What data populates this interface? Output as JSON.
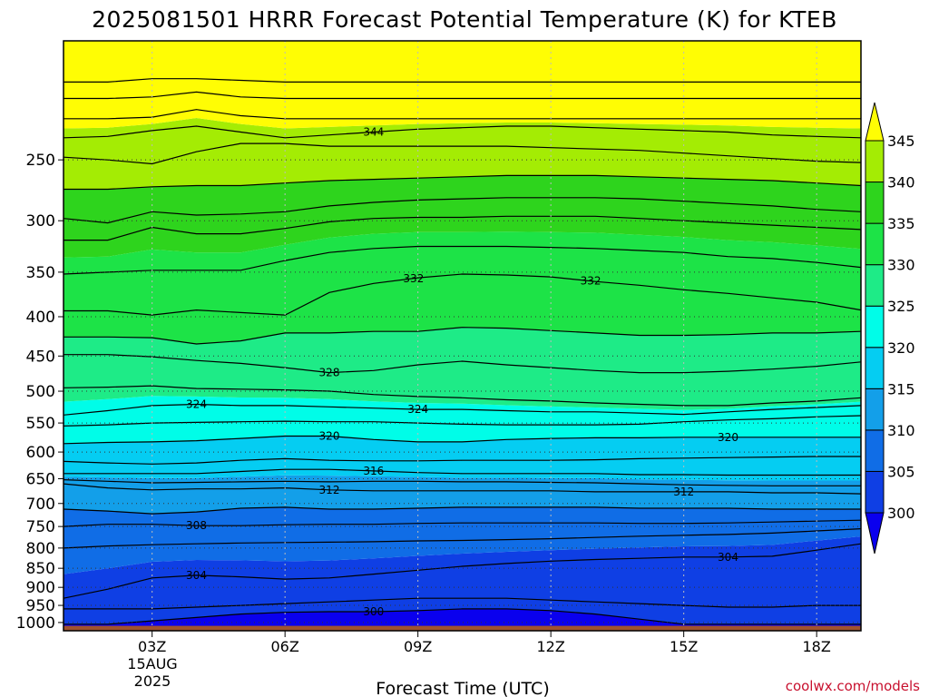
{
  "chart_data": {
    "type": "heatmap",
    "title": "2025081501 HRRR Forecast Potential Temperature (K) for KTEB",
    "xlabel": "Forecast Time (UTC)",
    "ylabel": "",
    "x_ticks": [
      {
        "label": "03Z",
        "hour": 3
      },
      {
        "label": "06Z",
        "hour": 6
      },
      {
        "label": "09Z",
        "hour": 9
      },
      {
        "label": "12Z",
        "hour": 12
      },
      {
        "label": "15Z",
        "hour": 15
      },
      {
        "label": "18Z",
        "hour": 18
      }
    ],
    "date_line1": "15AUG",
    "date_line2": "2025",
    "xlim": [
      1,
      19
    ],
    "y_scale": "log-pressure",
    "ylim": [
      1025,
      175
    ],
    "y_ticks": [
      250,
      300,
      350,
      400,
      450,
      500,
      550,
      600,
      650,
      700,
      750,
      800,
      850,
      900,
      950,
      1000
    ],
    "colorbar": {
      "levels": [
        300,
        305,
        310,
        315,
        320,
        325,
        330,
        335,
        340,
        345
      ],
      "colors": [
        "#0a00ee",
        "#0f3fe4",
        "#106de6",
        "#139fe9",
        "#05cdf2",
        "#00fde8",
        "#1eeb87",
        "#1de347",
        "#2ed41d",
        "#a4ec04",
        "#fffd04"
      ],
      "extend": "both"
    },
    "isentropes": [
      {
        "value": 300,
        "pressures": [
          1005,
          1005,
          995,
          985,
          975,
          970,
          968,
          968,
          965,
          960,
          960,
          965,
          975,
          990,
          1005,
          1005,
          1005,
          1005,
          1005
        ]
      },
      {
        "value": 302,
        "pressures": [
          960,
          960,
          960,
          955,
          950,
          945,
          940,
          935,
          930,
          930,
          930,
          935,
          940,
          945,
          950,
          955,
          955,
          950,
          950
        ]
      },
      {
        "value": 304,
        "pressures": [
          930,
          905,
          875,
          868,
          872,
          878,
          875,
          865,
          855,
          845,
          838,
          832,
          828,
          825,
          822,
          822,
          820,
          805,
          790
        ]
      },
      {
        "value": 306,
        "pressures": [
          800,
          795,
          792,
          790,
          788,
          787,
          786,
          785,
          783,
          782,
          780,
          778,
          775,
          772,
          770,
          768,
          765,
          760,
          755
        ]
      },
      {
        "value": 308,
        "pressures": [
          750,
          745,
          745,
          748,
          748,
          746,
          745,
          745,
          743,
          742,
          742,
          742,
          742,
          743,
          743,
          742,
          740,
          738,
          736
        ]
      },
      {
        "value": 310,
        "pressures": [
          712,
          716,
          722,
          718,
          710,
          708,
          712,
          712,
          710,
          708,
          708,
          708,
          708,
          710,
          710,
          710,
          712,
          712,
          712
        ]
      },
      {
        "value": 312,
        "pressures": [
          660,
          668,
          672,
          670,
          670,
          668,
          672,
          674,
          674,
          674,
          674,
          674,
          676,
          676,
          676,
          676,
          678,
          678,
          680
        ]
      },
      {
        "value": 314,
        "pressures": [
          652,
          655,
          658,
          657,
          656,
          655,
          656,
          655,
          655,
          656,
          656,
          657,
          658,
          660,
          662,
          663,
          664,
          664,
          664
        ]
      },
      {
        "value": 316,
        "pressures": [
          640,
          640,
          640,
          640,
          636,
          632,
          632,
          635,
          638,
          640,
          640,
          640,
          640,
          642,
          642,
          643,
          643,
          643,
          643
        ]
      },
      {
        "value": 318,
        "pressures": [
          617,
          620,
          622,
          620,
          615,
          612,
          615,
          616,
          616,
          615,
          615,
          615,
          614,
          612,
          611,
          610,
          609,
          608,
          608
        ]
      },
      {
        "value": 320,
        "pressures": [
          585,
          583,
          582,
          580,
          576,
          572,
          572,
          578,
          582,
          582,
          578,
          576,
          575,
          575,
          574,
          574,
          574,
          574,
          574
        ]
      },
      {
        "value": 322,
        "pressures": [
          555,
          553,
          550,
          549,
          548,
          547,
          548,
          548,
          550,
          552,
          553,
          553,
          553,
          552,
          548,
          545,
          543,
          540,
          538
        ]
      },
      {
        "value": 324,
        "pressures": [
          537,
          530,
          522,
          520,
          522,
          522,
          524,
          526,
          528,
          528,
          530,
          532,
          532,
          534,
          536,
          532,
          528,
          525,
          522
        ]
      },
      {
        "value": 326,
        "pressures": [
          495,
          494,
          492,
          496,
          497,
          498,
          500,
          505,
          508,
          510,
          513,
          515,
          518,
          520,
          522,
          522,
          518,
          515,
          510
        ]
      },
      {
        "value": 328,
        "pressures": [
          448,
          448,
          451,
          456,
          460,
          466,
          473,
          470,
          462,
          457,
          462,
          466,
          470,
          473,
          473,
          471,
          468,
          464,
          458
        ]
      },
      {
        "value": 330,
        "pressures": [
          425,
          425,
          426,
          434,
          430,
          420,
          420,
          418,
          418,
          413,
          414,
          417,
          420,
          423,
          423,
          422,
          420,
          420,
          418
        ]
      },
      {
        "value": 332,
        "pressures": [
          393,
          393,
          398,
          392,
          395,
          398,
          372,
          362,
          356,
          352,
          353,
          355,
          360,
          364,
          369,
          373,
          378,
          383,
          392
        ]
      },
      {
        "value": 334,
        "pressures": [
          352,
          350,
          348,
          348,
          348,
          338,
          330,
          326,
          324,
          324,
          324,
          325,
          326,
          328,
          330,
          334,
          336,
          340,
          345
        ]
      },
      {
        "value": 336,
        "pressures": [
          318,
          318,
          306,
          312,
          312,
          307,
          301,
          298,
          297,
          297,
          296,
          296,
          296,
          298,
          300,
          302,
          304,
          306,
          308
        ]
      },
      {
        "value": 338,
        "pressures": [
          298,
          302,
          292,
          295,
          294,
          292,
          287,
          284,
          282,
          281,
          280,
          280,
          280,
          281,
          283,
          285,
          287,
          290,
          292
        ]
      },
      {
        "value": 340,
        "pressures": [
          273,
          273,
          271,
          270,
          270,
          268,
          266,
          265,
          264,
          263,
          262,
          262,
          262,
          263,
          264,
          265,
          266,
          268,
          270
        ]
      },
      {
        "value": 342,
        "pressures": [
          248,
          250,
          253,
          244,
          238,
          238,
          240,
          240,
          240,
          240,
          240,
          241,
          242,
          243,
          245,
          247,
          249,
          251,
          252
        ]
      },
      {
        "value": 344,
        "pressures": [
          234,
          233,
          229,
          226,
          230,
          234,
          232,
          230,
          228,
          227,
          226,
          226,
          227,
          228,
          229,
          230,
          232,
          233,
          234
        ]
      },
      {
        "value": 346,
        "pressures": [
          221,
          221,
          220,
          215,
          219,
          221,
          221,
          221,
          221,
          221,
          221,
          221,
          221,
          221,
          221,
          221,
          221,
          221,
          221
        ]
      },
      {
        "value": 348,
        "pressures": [
          208,
          208,
          207,
          204,
          207,
          208,
          208,
          208,
          208,
          208,
          208,
          208,
          208,
          208,
          208,
          208,
          208,
          208,
          208
        ]
      },
      {
        "value": 350,
        "pressures": [
          198,
          198,
          196,
          196,
          197,
          198,
          198,
          198,
          198,
          198,
          198,
          198,
          198,
          198,
          198,
          198,
          198,
          198,
          198
        ]
      }
    ],
    "contour_labels": [
      {
        "text": "344",
        "hour": 8.0,
        "isentrope": 344
      },
      {
        "text": "332",
        "hour": 8.9,
        "isentrope": 332
      },
      {
        "text": "332",
        "hour": 12.9,
        "isentrope": 332
      },
      {
        "text": "328",
        "hour": 7.0,
        "isentrope": 328
      },
      {
        "text": "324",
        "hour": 4.0,
        "isentrope": 324
      },
      {
        "text": "324",
        "hour": 9.0,
        "isentrope": 324
      },
      {
        "text": "320",
        "hour": 7.0,
        "isentrope": 320
      },
      {
        "text": "320",
        "hour": 16.0,
        "isentrope": 320
      },
      {
        "text": "316",
        "hour": 8.0,
        "isentrope": 316
      },
      {
        "text": "312",
        "hour": 7.0,
        "isentrope": 312
      },
      {
        "text": "312",
        "hour": 15.0,
        "isentrope": 312
      },
      {
        "text": "308",
        "hour": 4.0,
        "isentrope": 308
      },
      {
        "text": "304",
        "hour": 4.0,
        "isentrope": 304
      },
      {
        "text": "304",
        "hour": 16.0,
        "isentrope": 304
      },
      {
        "text": "300",
        "hour": 8.0,
        "isentrope": 300
      }
    ],
    "surface_color": "#a0522d",
    "grid": true
  },
  "credit": "coolwx.com/models"
}
